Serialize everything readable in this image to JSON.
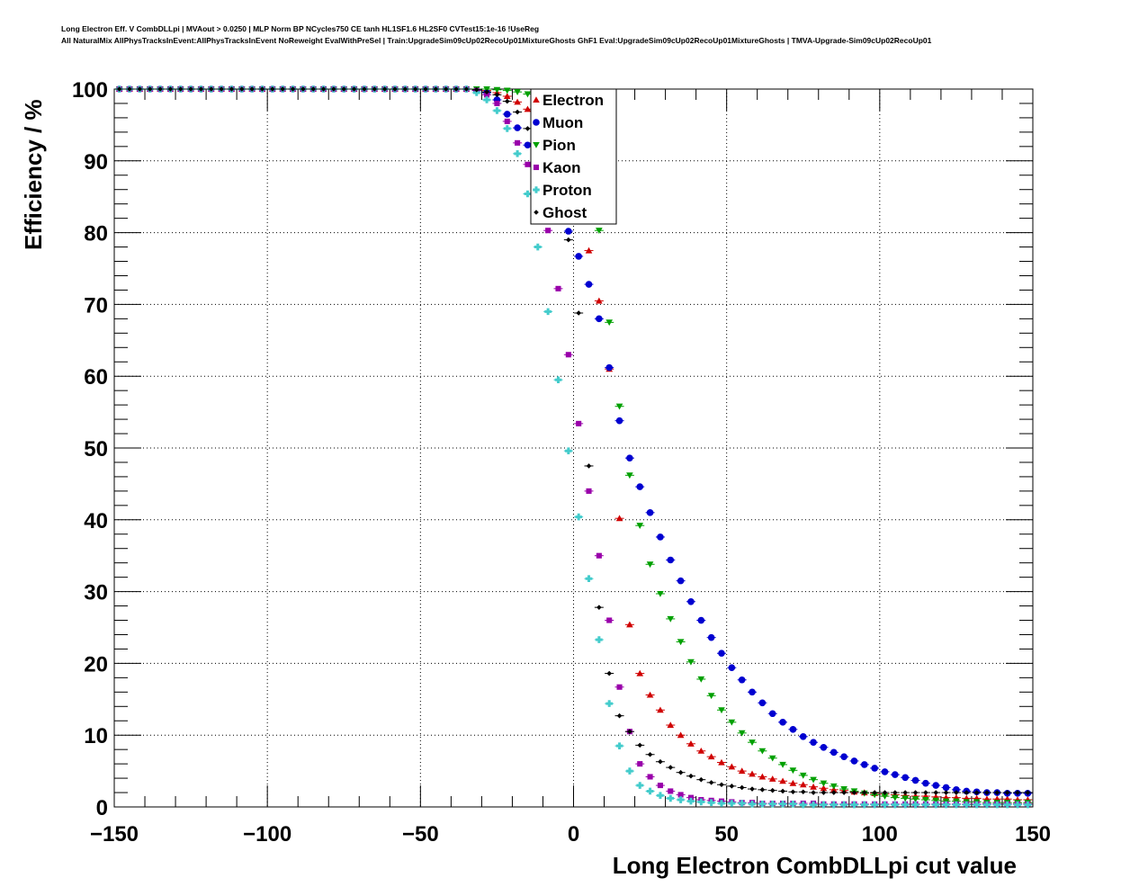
{
  "header": {
    "line1": "Long Electron Eff. V CombDLLpi | MVAout > 0.0250 | MLP Norm BP NCycles750 CE tanh HL1SF1.6 HL2SF0 CVTest15:1e-16 !UseReg",
    "line2": "All NaturalMix AllPhysTracksInEvent:AllPhysTracksInEvent NoReweight EvalWithPreSel | Train:UpgradeSim09cUp02RecoUp01MixtureGhosts GhF1 Eval:UpgradeSim09cUp02RecoUp01MixtureGhosts | TMVA-Upgrade-Sim09cUp02RecoUp01"
  },
  "chart_data": {
    "type": "scatter",
    "xlabel": "Long Electron CombDLLpi cut value",
    "ylabel": "Efficiency / %",
    "xlim": [
      -150,
      150
    ],
    "ylim": [
      0,
      100
    ],
    "xticks": [
      -150,
      -100,
      -50,
      0,
      50,
      100,
      150
    ],
    "xtick_labels": [
      "−150",
      "−100",
      "−50",
      "0",
      "50",
      "100",
      "150"
    ],
    "yticks": [
      0,
      10,
      20,
      30,
      40,
      50,
      60,
      70,
      80,
      90,
      100
    ],
    "yticks_labels": [
      "0",
      "10",
      "20",
      "30",
      "40",
      "50",
      "60",
      "70",
      "80",
      "90",
      "100"
    ],
    "grid": true,
    "legend_position": "top-center",
    "x_start": -150,
    "x_step": 3.33333,
    "series": [
      {
        "name": "Electron",
        "color": "#d00000",
        "marker": "triangle-up",
        "values": [
          100,
          100,
          100,
          100,
          100,
          100,
          100,
          100,
          100,
          100,
          100,
          100,
          100,
          100,
          100,
          100,
          100,
          100,
          100,
          100,
          100,
          100,
          100,
          100,
          100,
          100,
          100,
          100,
          100,
          100,
          100,
          100,
          100,
          100,
          100,
          99.9,
          99.8,
          99.5,
          99.0,
          98.2,
          97.2,
          95.8,
          94.0,
          92.5,
          90.0,
          84.0,
          77.5,
          70.5,
          61.0,
          40.2,
          25.4,
          18.6,
          15.6,
          13.5,
          11.4,
          10.0,
          8.8,
          7.8,
          7.0,
          6.2,
          5.6,
          5.0,
          4.6,
          4.2,
          3.9,
          3.6,
          3.3,
          3.1,
          2.8,
          2.6,
          2.4,
          2.3,
          2.1,
          2.0,
          1.9,
          1.8,
          1.7,
          1.6,
          1.5,
          1.5,
          1.4,
          1.3,
          1.3,
          1.2,
          1.2,
          1.1,
          1.1,
          1.1,
          1.0,
          1.0
        ]
      },
      {
        "name": "Muon",
        "color": "#0000d0",
        "marker": "circle",
        "values": [
          100,
          100,
          100,
          100,
          100,
          100,
          100,
          100,
          100,
          100,
          100,
          100,
          100,
          100,
          100,
          100,
          100,
          100,
          100,
          100,
          100,
          100,
          100,
          100,
          100,
          100,
          100,
          100,
          100,
          100,
          100,
          100,
          100,
          100,
          100,
          99.8,
          99.5,
          98.5,
          96.5,
          94.6,
          92.2,
          89.7,
          86.8,
          83.6,
          80.2,
          76.7,
          72.8,
          68.0,
          61.2,
          53.8,
          48.6,
          44.6,
          41.0,
          37.6,
          34.4,
          31.5,
          28.6,
          26.0,
          23.6,
          21.4,
          19.4,
          17.7,
          16.0,
          14.5,
          13.0,
          11.8,
          10.8,
          9.8,
          9.0,
          8.3,
          7.6,
          7.0,
          6.4,
          5.9,
          5.4,
          4.9,
          4.5,
          4.1,
          3.7,
          3.3,
          3.0,
          2.7,
          2.4,
          2.2,
          2.1,
          2.0,
          2.0,
          1.9,
          1.9,
          1.9
        ]
      },
      {
        "name": "Pion",
        "color": "#00a000",
        "marker": "triangle-down",
        "values": [
          100,
          100,
          100,
          100,
          100,
          100,
          100,
          100,
          100,
          100,
          100,
          100,
          100,
          100,
          100,
          100,
          100,
          100,
          100,
          100,
          100,
          100,
          100,
          100,
          100,
          100,
          100,
          100,
          100,
          100,
          100,
          100,
          100,
          100,
          100,
          100,
          100,
          99.9,
          99.8,
          99.6,
          99.3,
          98.8,
          97.8,
          96.2,
          93.5,
          89.5,
          85.5,
          80.3,
          67.5,
          55.8,
          46.2,
          39.2,
          33.8,
          29.7,
          26.2,
          23.0,
          20.2,
          17.8,
          15.5,
          13.5,
          11.8,
          10.3,
          9.0,
          7.8,
          6.8,
          5.9,
          5.1,
          4.4,
          3.8,
          3.3,
          2.9,
          2.5,
          2.2,
          1.9,
          1.7,
          1.5,
          1.3,
          1.2,
          1.1,
          1.0,
          0.9,
          0.8,
          0.8,
          0.7,
          0.7,
          0.6,
          0.6,
          0.6,
          0.6,
          0.6
        ]
      },
      {
        "name": "Kaon",
        "color": "#9900aa",
        "marker": "square",
        "values": [
          100,
          100,
          100,
          100,
          100,
          100,
          100,
          100,
          100,
          100,
          100,
          100,
          100,
          100,
          100,
          100,
          100,
          100,
          100,
          100,
          100,
          100,
          100,
          100,
          100,
          100,
          100,
          100,
          100,
          100,
          100,
          100,
          100,
          100,
          100,
          99.8,
          99.2,
          98.0,
          95.5,
          92.5,
          89.5,
          86.8,
          80.3,
          72.2,
          63.0,
          53.4,
          44.0,
          35.0,
          26.0,
          16.7,
          10.5,
          6.0,
          4.2,
          3.0,
          2.2,
          1.7,
          1.3,
          1.0,
          0.9,
          0.8,
          0.7,
          0.6,
          0.6,
          0.5,
          0.5,
          0.5,
          0.5,
          0.5,
          0.5,
          0.4,
          0.4,
          0.4,
          0.4,
          0.4,
          0.4,
          0.4,
          0.4,
          0.4,
          0.4,
          0.4,
          0.4,
          0.4,
          0.4,
          0.4,
          0.4,
          0.4,
          0.4,
          0.4,
          0.4,
          0.4
        ]
      },
      {
        "name": "Proton",
        "color": "#44cccc",
        "marker": "cross",
        "values": [
          100,
          100,
          100,
          100,
          100,
          100,
          100,
          100,
          100,
          100,
          100,
          100,
          100,
          100,
          100,
          100,
          100,
          100,
          100,
          100,
          100,
          100,
          100,
          100,
          100,
          100,
          100,
          100,
          100,
          100,
          100,
          100,
          100,
          100,
          100,
          99.5,
          98.5,
          97.0,
          94.5,
          91.0,
          85.4,
          78.0,
          69.0,
          59.5,
          49.6,
          40.4,
          31.8,
          23.3,
          14.4,
          8.5,
          5.0,
          3.0,
          2.2,
          1.6,
          1.2,
          1.0,
          0.8,
          0.7,
          0.6,
          0.5,
          0.5,
          0.5,
          0.4,
          0.4,
          0.4,
          0.4,
          0.4,
          0.3,
          0.3,
          0.3,
          0.3,
          0.3,
          0.3,
          0.3,
          0.3,
          0.3,
          0.3,
          0.3,
          0.3,
          0.3,
          0.3,
          0.3,
          0.3,
          0.3,
          0.3,
          0.3,
          0.3,
          0.3,
          0.3,
          0.3
        ]
      },
      {
        "name": "Ghost",
        "color": "#000000",
        "marker": "diamond",
        "values": [
          100,
          100,
          100,
          100,
          100,
          100,
          100,
          100,
          100,
          100,
          100,
          100,
          100,
          100,
          100,
          100,
          100,
          100,
          100,
          100,
          100,
          100,
          100,
          100,
          100,
          100,
          100,
          100,
          100,
          100,
          100,
          100,
          100,
          100,
          100,
          99.9,
          99.6,
          99.2,
          98.3,
          96.8,
          94.5,
          91.8,
          87.5,
          83.0,
          79.0,
          68.8,
          47.5,
          27.8,
          18.6,
          12.7,
          10.5,
          8.6,
          7.3,
          6.3,
          5.5,
          4.8,
          4.3,
          3.8,
          3.4,
          3.1,
          2.9,
          2.7,
          2.5,
          2.4,
          2.3,
          2.2,
          2.1,
          2.1,
          2.0,
          2.0,
          2.0,
          2.0,
          2.0,
          2.0,
          2.0,
          2.0,
          2.0,
          2.0,
          2.0,
          2.0,
          2.0,
          2.0,
          2.0,
          2.0,
          2.0,
          2.0,
          2.0,
          2.0,
          2.0,
          2.0
        ]
      }
    ]
  }
}
